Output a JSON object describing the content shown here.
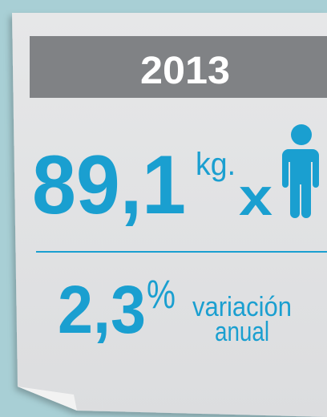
{
  "header": {
    "year": "2013"
  },
  "consumption": {
    "value": "89,1",
    "unit": "kg.",
    "per": "x"
  },
  "variation": {
    "value": "2,3",
    "unit": "%",
    "label_line1": "variación",
    "label_line2": "anual"
  }
}
